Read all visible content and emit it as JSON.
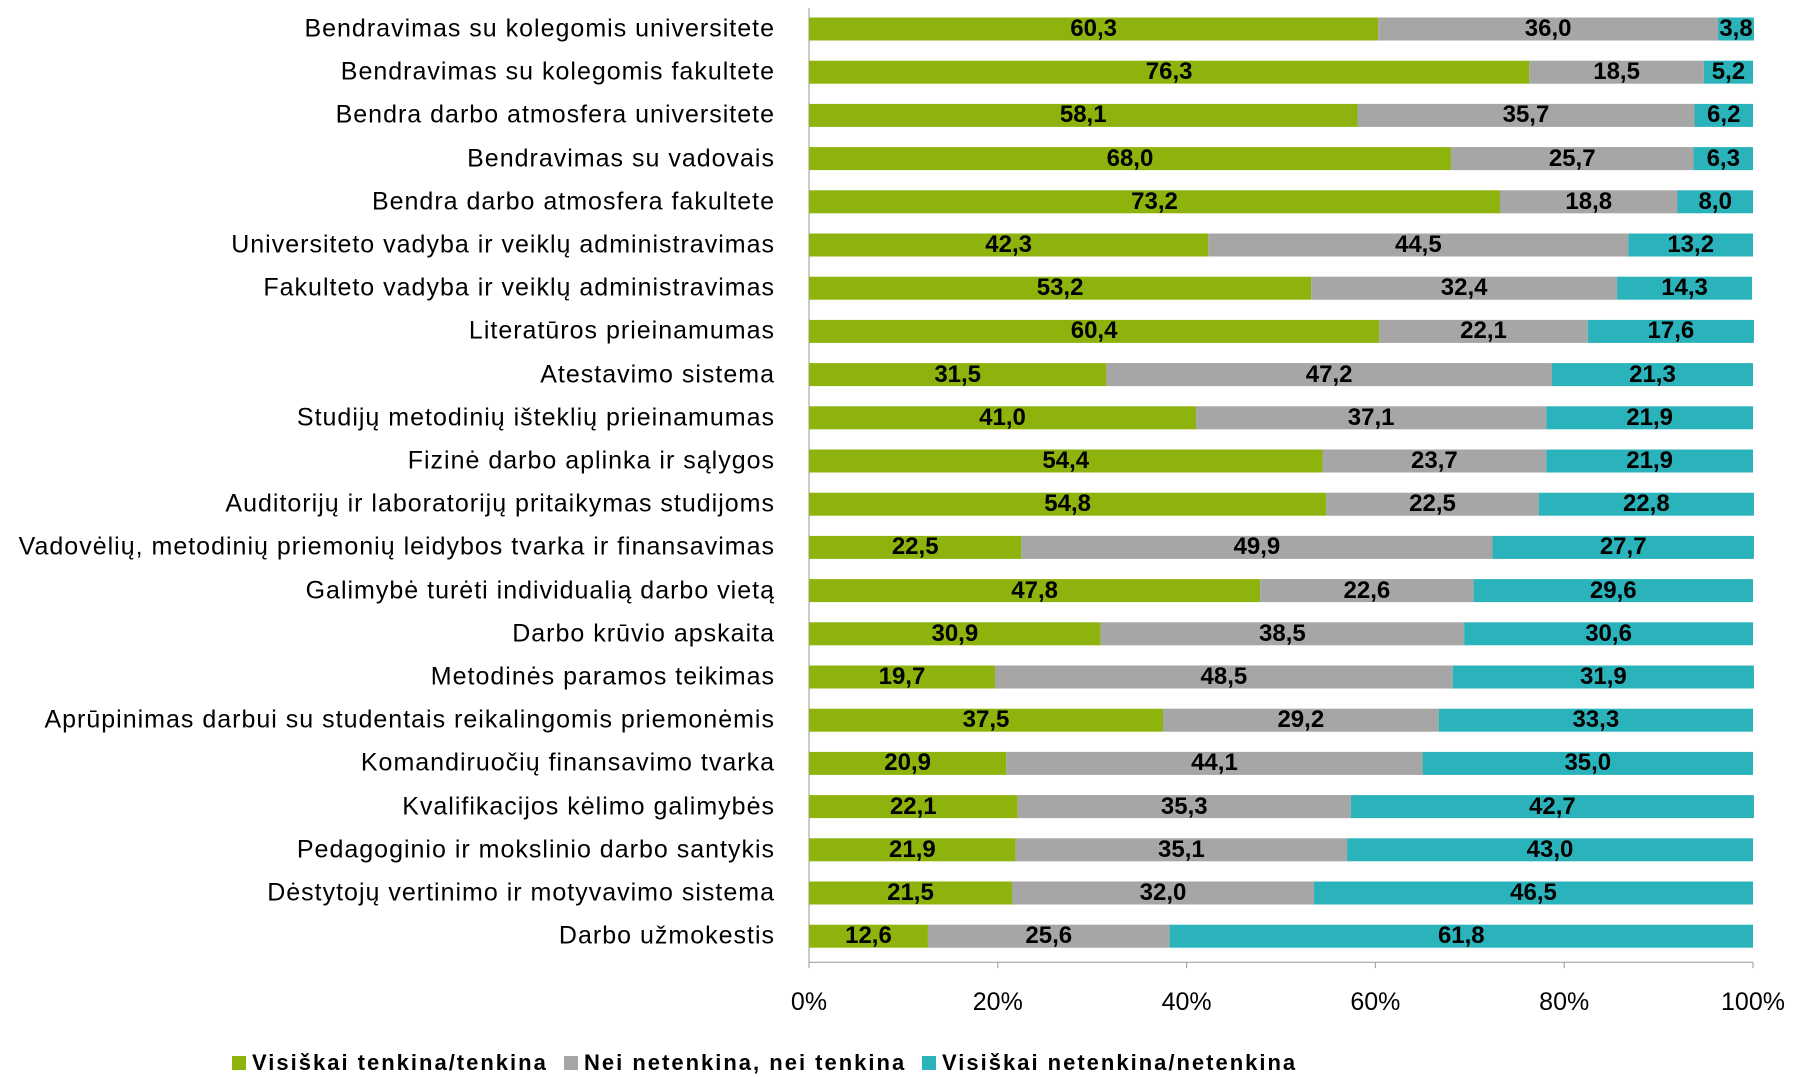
{
  "chart_data": {
    "type": "stacked-barh",
    "categories": [
      "Bendravimas su kolegomis universitete",
      "Bendravimas su kolegomis fakultete",
      "Bendra darbo atmosfera universitete",
      "Bendravimas su vadovais",
      "Bendra darbo atmosfera fakultete",
      "Universiteto vadyba ir veiklų administravimas",
      "Fakulteto vadyba ir veiklų administravimas",
      "Literatūros prieinamumas",
      "Atestavimo sistema",
      "Studijų metodinių išteklių prieinamumas",
      "Fizinė darbo aplinka ir sąlygos",
      "Auditorijų ir laboratorijų pritaikymas studijoms",
      "Vadovėlių, metodinių priemonių leidybos tvarka ir finansavimas",
      "Galimybė turėti individualią darbo vietą",
      "Darbo krūvio apskaita",
      "Metodinės paramos teikimas",
      "Aprūpinimas darbui su studentais reikalingomis priemonėmis",
      "Komandiruočių finansavimo tvarka",
      "Kvalifikacijos kėlimo galimybės",
      "Pedagoginio ir mokslinio darbo santykis",
      "Dėstytojų vertinimo ir motyvavimo sistema",
      "Darbo užmokestis"
    ],
    "series": [
      {
        "name": "Visiškai tenkina/tenkina",
        "color": "#8db30c",
        "values": [
          60.3,
          76.3,
          58.1,
          68.0,
          73.2,
          42.3,
          53.2,
          60.4,
          31.5,
          41.0,
          54.4,
          54.8,
          22.5,
          47.8,
          30.9,
          19.7,
          37.5,
          20.9,
          22.1,
          21.9,
          21.5,
          12.6
        ],
        "value_labels": [
          "60,3",
          "76,3",
          "58,1",
          "68,0",
          "73,2",
          "42,3",
          "53,2",
          "60,4",
          "31,5",
          "41,0",
          "54,4",
          "54,8",
          "22,5",
          "47,8",
          "30,9",
          "19,7",
          "37,5",
          "20,9",
          "22,1",
          "21,9",
          "21,5",
          "12,6"
        ]
      },
      {
        "name": "Nei netenkina, nei tenkina",
        "color": "#a6a6a6",
        "values": [
          36.0,
          18.5,
          35.7,
          25.7,
          18.8,
          44.5,
          32.4,
          22.1,
          47.2,
          37.1,
          23.7,
          22.5,
          49.9,
          22.6,
          38.5,
          48.5,
          29.2,
          44.1,
          35.3,
          35.1,
          32.0,
          25.6
        ],
        "value_labels": [
          "36,0",
          "18,5",
          "35,7",
          "25,7",
          "18,8",
          "44,5",
          "32,4",
          "22,1",
          "47,2",
          "37,1",
          "23,7",
          "22,5",
          "49,9",
          "22,6",
          "38,5",
          "48,5",
          "29,2",
          "44,1",
          "35,3",
          "35,1",
          "32,0",
          "25,6"
        ]
      },
      {
        "name": "Visiškai netenkina/netenkina",
        "color": "#2bb3bb",
        "values": [
          3.8,
          5.2,
          6.2,
          6.3,
          8.0,
          13.2,
          14.3,
          17.6,
          21.3,
          21.9,
          21.9,
          22.8,
          27.7,
          29.6,
          30.6,
          31.9,
          33.3,
          35.0,
          42.7,
          43.0,
          46.5,
          61.8
        ],
        "value_labels": [
          "3,8",
          "5,2",
          "6,2",
          "6,3",
          "8,0",
          "13,2",
          "14,3",
          "17,6",
          "21,3",
          "21,9",
          "21,9",
          "22,8",
          "27,7",
          "29,6",
          "30,6",
          "31,9",
          "33,3",
          "35,0",
          "42,7",
          "43,0",
          "46,5",
          "61,8"
        ]
      }
    ],
    "xlim": [
      0,
      100
    ],
    "xticks": [
      {
        "value": 0,
        "label": "0%"
      },
      {
        "value": 20,
        "label": "20%"
      },
      {
        "value": 40,
        "label": "40%"
      },
      {
        "value": 60,
        "label": "60%"
      },
      {
        "value": 80,
        "label": "80%"
      },
      {
        "value": 100,
        "label": "100%"
      }
    ],
    "grid": false,
    "legend": "bottom"
  }
}
